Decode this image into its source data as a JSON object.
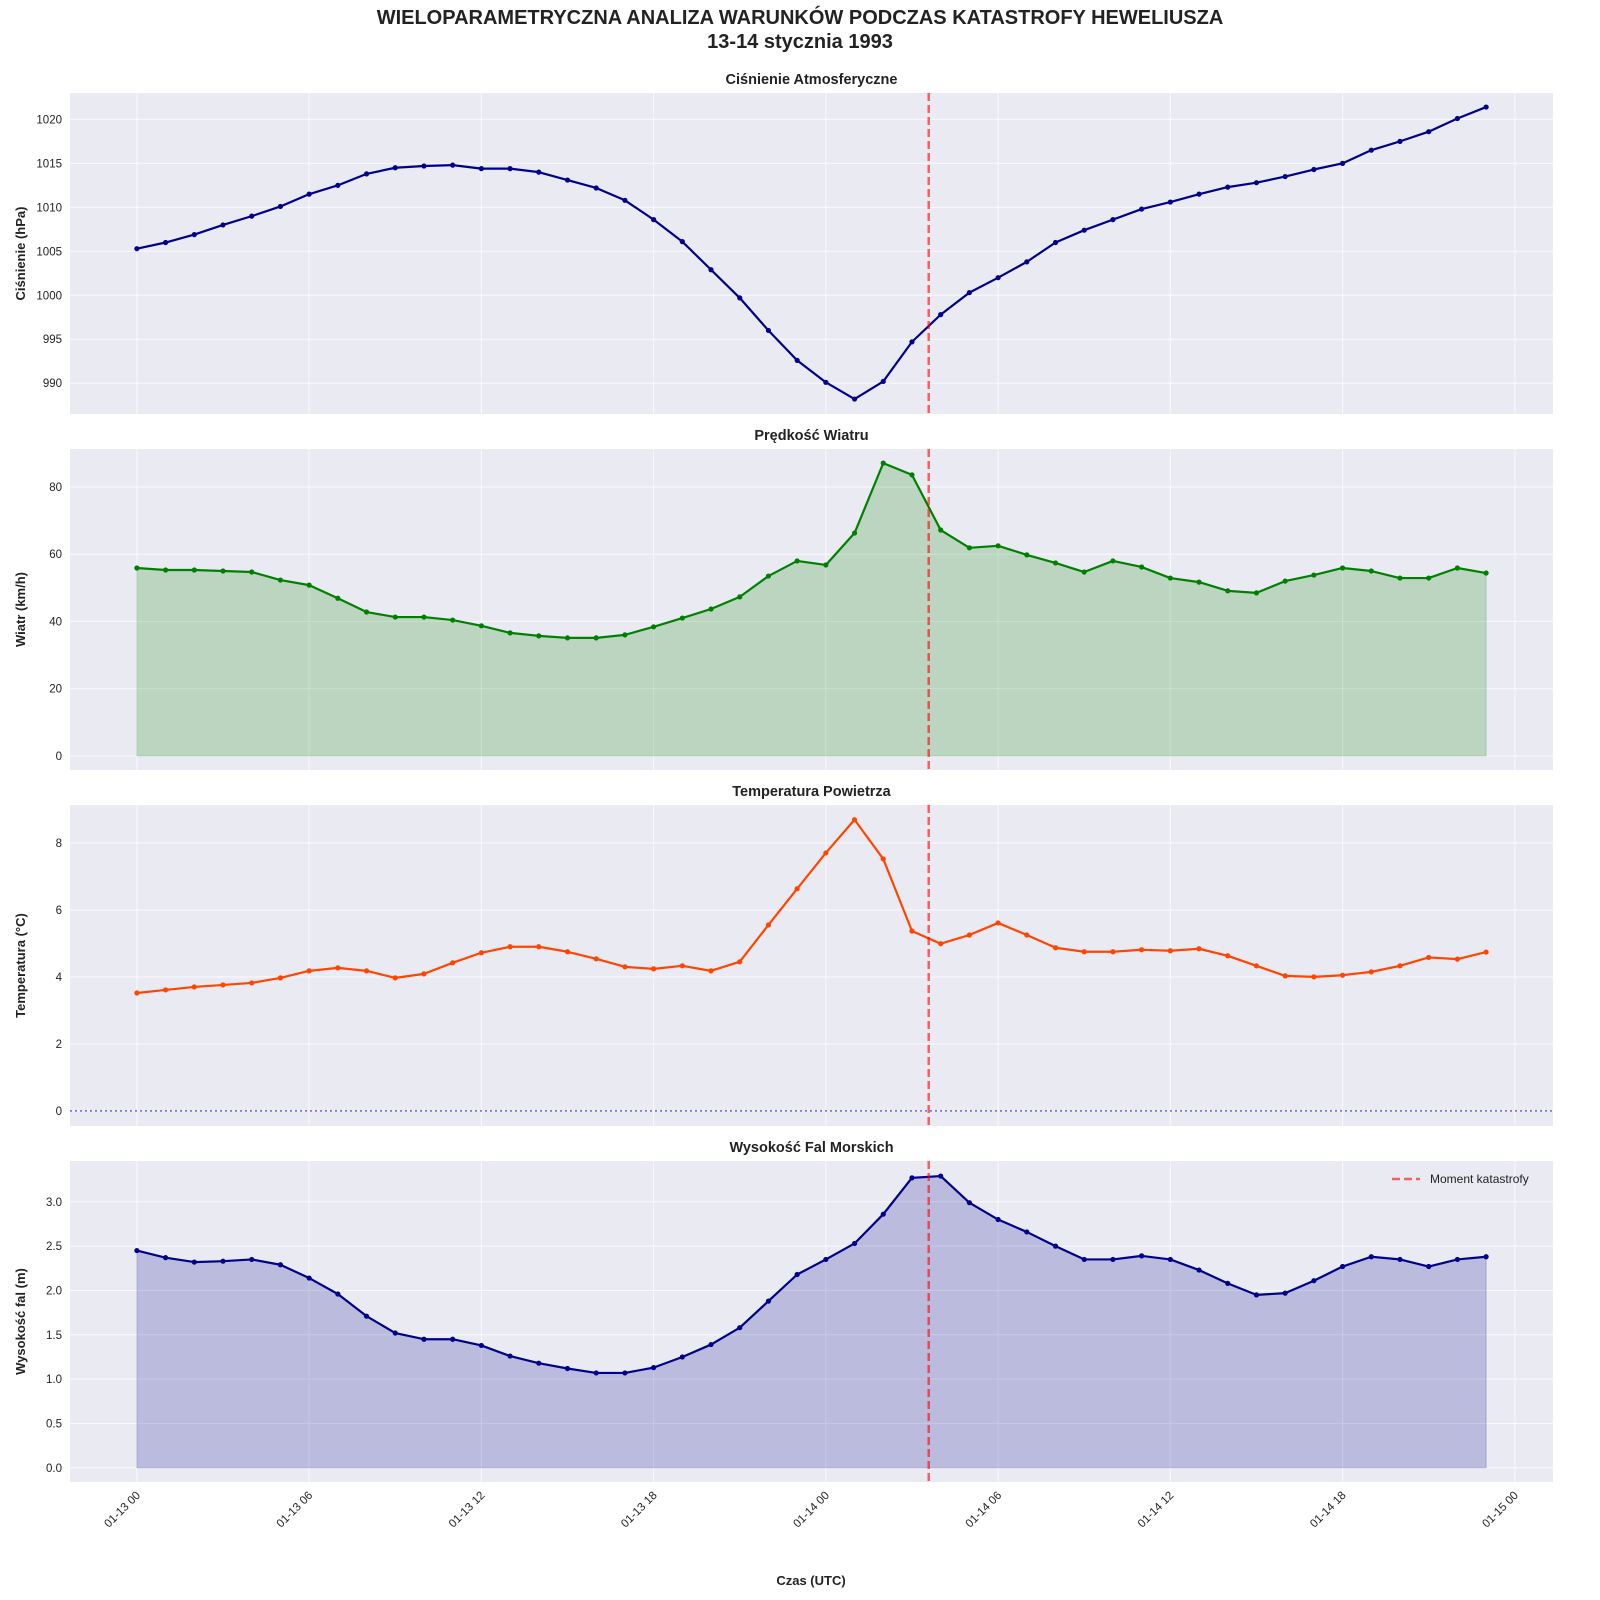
{
  "title_line1": "WIELOPARAMETRYCZNA ANALIZA WARUNKÓW PODCZAS KATASTROFY HEWELIUSZA",
  "title_line2": "13-14 stycznia 1993",
  "xlabel": "Czas (UTC)",
  "legend": {
    "label": "Moment katastrofy",
    "placement": "upper-right",
    "panel": 3
  },
  "colors": {
    "background": "#eaeaf2",
    "grid": "#ffffff",
    "event_line": "#ff0000",
    "zero_line": "#0000ff"
  },
  "chart_data": [
    {
      "type": "line",
      "title": "Ciśnienie Atmosferyczne",
      "ylabel": "Ciśnienie (hPa)",
      "color": "#00008b",
      "fill": false,
      "ylim": [
        986.5,
        1023
      ],
      "yticks": [
        990,
        995,
        1000,
        1005,
        1010,
        1015,
        1020
      ],
      "values": [
        1005.3,
        1006.0,
        1006.9,
        1008.0,
        1009.0,
        1010.1,
        1011.5,
        1012.5,
        1013.8,
        1014.5,
        1014.7,
        1014.8,
        1014.4,
        1014.4,
        1014.0,
        1013.1,
        1012.2,
        1010.8,
        1008.6,
        1006.1,
        1002.9,
        999.7,
        996.0,
        992.6,
        990.1,
        988.2,
        990.2,
        994.7,
        997.8,
        1000.3,
        1002.0,
        1003.8,
        1006.0,
        1007.4,
        1008.6,
        1009.8,
        1010.6,
        1011.5,
        1012.3,
        1012.8,
        1013.5,
        1014.3,
        1015.0,
        1016.5,
        1017.5,
        1018.6,
        1020.1,
        1021.4
      ]
    },
    {
      "type": "area",
      "title": "Prędkość Wiatru",
      "ylabel": "Wiatr (km/h)",
      "color": "#008000",
      "fill": true,
      "ylim": [
        -4.2,
        91.3
      ],
      "yticks": [
        0,
        20,
        40,
        60,
        80
      ],
      "values": [
        55.9,
        55.3,
        55.3,
        55.0,
        54.7,
        52.3,
        50.8,
        46.9,
        42.8,
        41.3,
        41.3,
        40.4,
        38.7,
        36.6,
        35.7,
        35.1,
        35.1,
        36.0,
        38.4,
        41.0,
        43.7,
        47.3,
        53.5,
        58.0,
        56.8,
        66.3,
        87.1,
        83.6,
        67.2,
        61.9,
        62.5,
        59.8,
        57.4,
        54.7,
        58.0,
        56.2,
        52.9,
        51.7,
        49.1,
        48.5,
        52.0,
        53.8,
        55.9,
        55.0,
        52.9,
        52.9,
        55.9,
        54.4
      ]
    },
    {
      "type": "line",
      "title": "Temperatura Powietrza",
      "ylabel": "Temperatura (°C)",
      "color": "#ff4500",
      "fill": false,
      "zero_line": true,
      "ylim": [
        -0.45,
        9.13
      ],
      "yticks": [
        0,
        2,
        4,
        6,
        8
      ],
      "values": [
        3.52,
        3.61,
        3.7,
        3.76,
        3.82,
        3.97,
        4.18,
        4.27,
        4.18,
        3.97,
        4.09,
        4.42,
        4.72,
        4.9,
        4.9,
        4.75,
        4.54,
        4.3,
        4.24,
        4.33,
        4.18,
        4.45,
        5.55,
        6.63,
        7.7,
        8.69,
        7.52,
        5.37,
        4.99,
        5.25,
        5.61,
        5.25,
        4.87,
        4.75,
        4.75,
        4.81,
        4.78,
        4.84,
        4.63,
        4.33,
        4.03,
        4.0,
        4.05,
        4.15,
        4.33,
        4.58,
        4.53,
        4.74
      ]
    },
    {
      "type": "area",
      "title": "Wysokość Fal Morskich",
      "ylabel": "Wysokość fal (m)",
      "color": "#00008b",
      "fill": true,
      "ylim": [
        -0.16,
        3.46
      ],
      "yticks": [
        0.0,
        0.5,
        1.0,
        1.5,
        2.0,
        2.5,
        3.0
      ],
      "values": [
        2.45,
        2.37,
        2.32,
        2.33,
        2.35,
        2.29,
        2.14,
        1.96,
        1.71,
        1.52,
        1.45,
        1.45,
        1.38,
        1.26,
        1.18,
        1.12,
        1.07,
        1.07,
        1.13,
        1.25,
        1.39,
        1.58,
        1.88,
        2.18,
        2.35,
        2.53,
        2.86,
        3.27,
        3.29,
        2.99,
        2.8,
        2.66,
        2.5,
        2.35,
        2.35,
        2.39,
        2.35,
        2.23,
        2.08,
        1.95,
        1.97,
        2.11,
        2.27,
        2.38,
        2.35,
        2.27,
        2.35,
        2.38
      ]
    }
  ],
  "x": {
    "start": "1993-01-13 00:00",
    "step": "1h",
    "count": 48,
    "xlim": [
      "1993-01-12 21:40",
      "1993-01-15 01:20"
    ],
    "ticks": [
      "01-13 00",
      "01-13 06",
      "01-13 12",
      "01-13 18",
      "01-14 00",
      "01-14 06",
      "01-14 12",
      "01-14 18",
      "01-15 00"
    ]
  },
  "event_time": "1993-01-14 03:35",
  "grid": true
}
